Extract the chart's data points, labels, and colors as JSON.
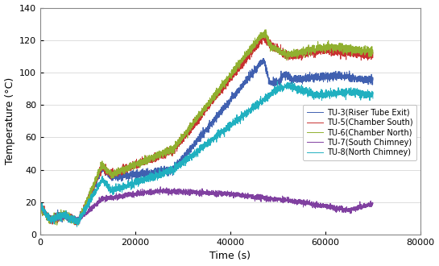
{
  "title": "",
  "xlabel": "Time (s)",
  "ylabel": "Temperature (°C)",
  "xlim": [
    0,
    80000
  ],
  "ylim": [
    0,
    140
  ],
  "xticks": [
    0,
    20000,
    40000,
    60000,
    80000
  ],
  "yticks": [
    0,
    20,
    40,
    60,
    80,
    100,
    120,
    140
  ],
  "legend": [
    {
      "label": "TU-3(Riser Tube Exit)",
      "color": "#4060b0"
    },
    {
      "label": "TU-5(Chamber South)",
      "color": "#c83030"
    },
    {
      "label": "TU-6(Chamber North)",
      "color": "#90b030"
    },
    {
      "label": "TU-7(South Chimney)",
      "color": "#8040a0"
    },
    {
      "label": "TU-8(North Chimney)",
      "color": "#20b0c0"
    }
  ],
  "background": "#ffffff",
  "plot_bg": "#ffffff",
  "grid_color": "#d8d8d8"
}
